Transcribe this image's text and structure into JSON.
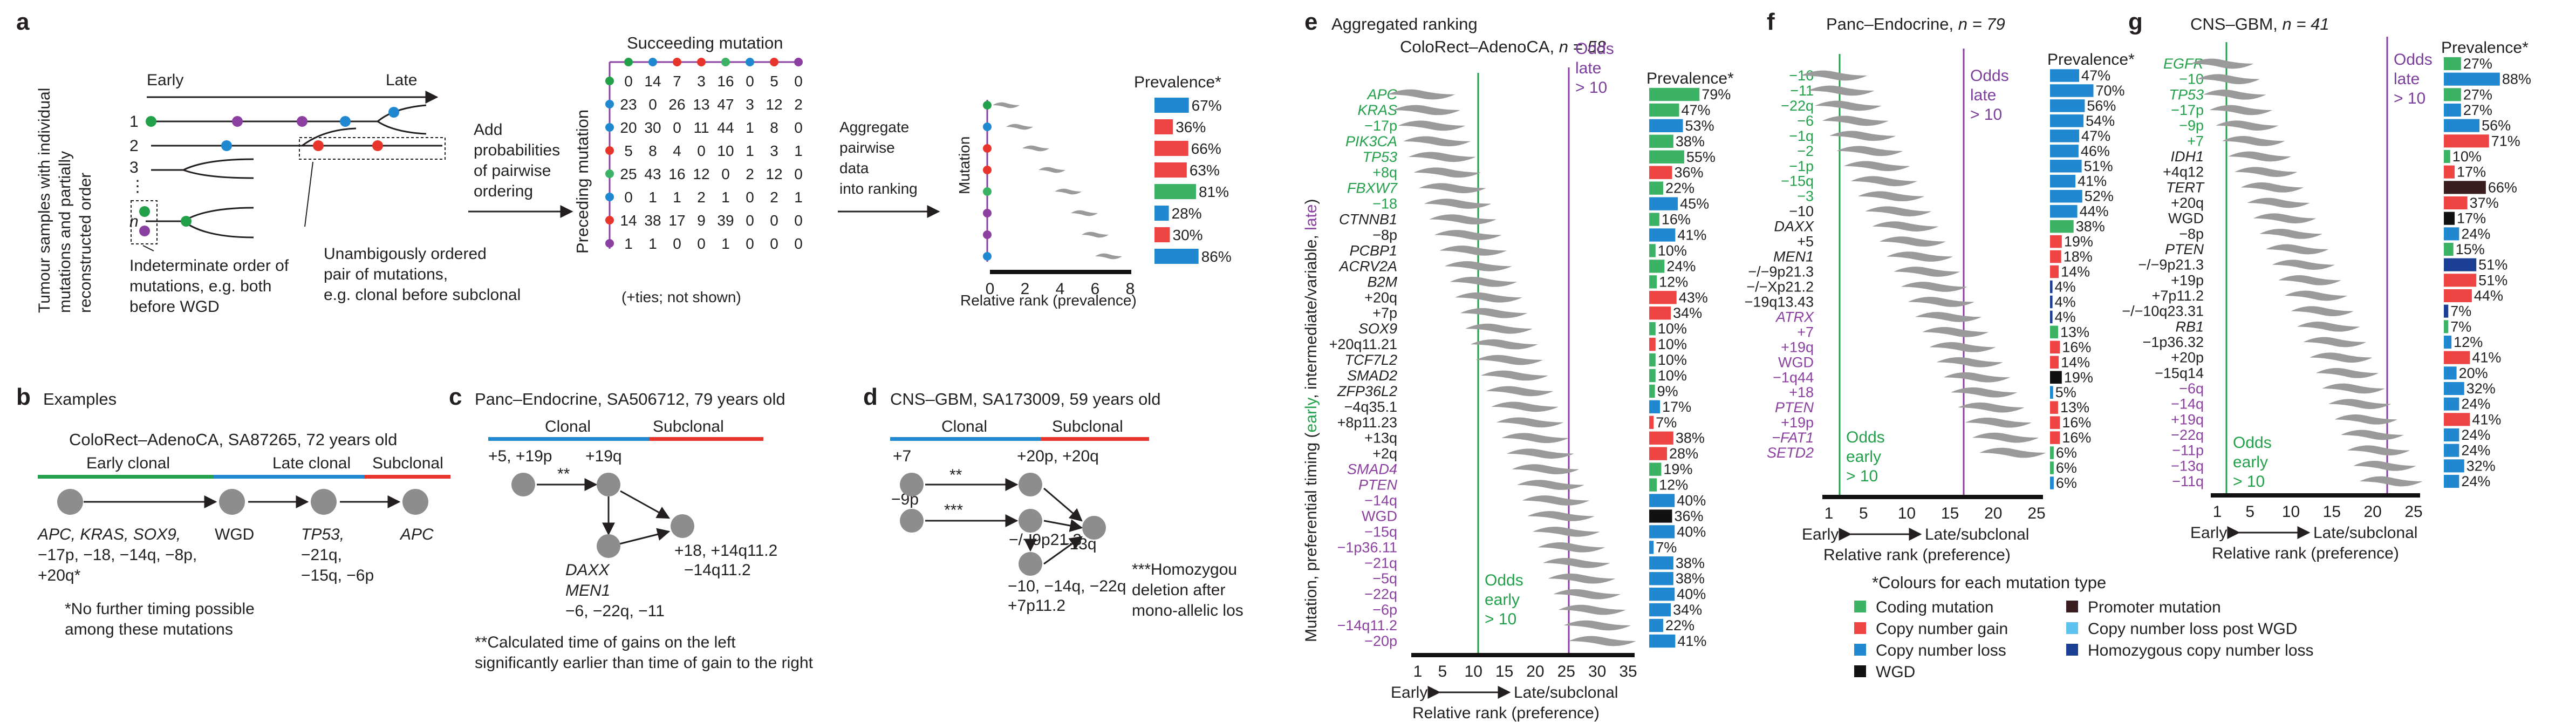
{
  "colors": {
    "early": "#22a04a",
    "late": "#8b3fa0",
    "coding": "#3bb264",
    "gain": "#ef4444",
    "loss": "#1f88d1",
    "loss_post_wgd": "#5ec2ef",
    "promoter": "#3a1d1f",
    "homozygous": "#1a3f94",
    "wgd": "#111111",
    "violin": "#9a9a9a",
    "clonal": "#1f88d1",
    "subclonal": "#e8352b"
  },
  "panel_a": {
    "label": "a",
    "side_text": [
      "Tumour samples with individual",
      "mutations and partially",
      "reconstructed order"
    ],
    "early": "Early",
    "late": "Late",
    "rows": [
      "1",
      "2",
      "3",
      "⋮",
      "n"
    ],
    "indeterminate": [
      "Indeterminate order of",
      "mutations, e.g. both",
      "before WGD"
    ],
    "unambiguous": [
      "Unambigously ordered",
      "pair of mutations,",
      "e.g. clonal before subclonal"
    ],
    "add": [
      "Add",
      "probabilities",
      "of pairwise",
      "ordering"
    ],
    "succeeding": "Succeeding mutation",
    "preceding": "Preceding mutation",
    "matrix": [
      [
        "0",
        "14",
        "7",
        "3",
        "16",
        "0",
        "5",
        "0"
      ],
      [
        "23",
        "0",
        "26",
        "13",
        "47",
        "3",
        "12",
        "2"
      ],
      [
        "20",
        "30",
        "0",
        "11",
        "44",
        "1",
        "8",
        "0"
      ],
      [
        "5",
        "8",
        "4",
        "0",
        "10",
        "1",
        "3",
        "1"
      ],
      [
        "25",
        "43",
        "16",
        "12",
        "0",
        "2",
        "12",
        "0"
      ],
      [
        "0",
        "1",
        "1",
        "2",
        "1",
        "0",
        "2",
        "1"
      ],
      [
        "14",
        "38",
        "17",
        "9",
        "39",
        "0",
        "0",
        "0"
      ],
      [
        "1",
        "1",
        "0",
        "0",
        "1",
        "0",
        "0",
        "0"
      ]
    ],
    "ties": "(+ties; not shown)",
    "aggregate": [
      "Aggregate",
      "pairwise",
      "data",
      "into ranking"
    ],
    "mutation_label": "Mutation",
    "prevalence_title": "Prevalence*",
    "prevalence": [
      {
        "pct": "67%",
        "value": 67,
        "type": "loss"
      },
      {
        "pct": "36%",
        "value": 36,
        "type": "gain"
      },
      {
        "pct": "66%",
        "value": 66,
        "type": "gain"
      },
      {
        "pct": "63%",
        "value": 63,
        "type": "gain"
      },
      {
        "pct": "81%",
        "value": 81,
        "type": "coding"
      },
      {
        "pct": "28%",
        "value": 28,
        "type": "loss"
      },
      {
        "pct": "30%",
        "value": 30,
        "type": "gain"
      },
      {
        "pct": "86%",
        "value": 86,
        "type": "loss"
      }
    ],
    "rank_ticks": [
      "0",
      "2",
      "4",
      "6",
      "8"
    ],
    "rank_axis": "Relative rank (prevalence)"
  },
  "panel_b": {
    "label": "b",
    "title": "Examples",
    "subtitle": "ColoRect–AdenoCA, SA87265, 72 years old",
    "phases": [
      "Early clonal",
      "Late clonal",
      "Subclonal"
    ],
    "nodes": [
      [
        "APC, KRAS, SOX9,",
        "−17p, −18, −14q, −8p,",
        "+20q*"
      ],
      [
        "WGD"
      ],
      [
        "TP53,",
        "−21q,",
        "−15q, −6p"
      ],
      [
        "APC"
      ]
    ],
    "note": [
      "*No further timing possible",
      "among these mutations"
    ]
  },
  "panel_c": {
    "label": "c",
    "title": "Panc–Endocrine, SA506712, 79 years old",
    "clonal": "Clonal",
    "subclonal": "Subclonal",
    "top_left": "+5, +19p",
    "top_right": "+19q",
    "stars": "**",
    "right": [
      "+18, +14q11.2",
      "−14q11.2"
    ],
    "bottom": [
      "DAXX",
      "MEN1",
      "−6, −22q, −11"
    ],
    "note": [
      "**Calculated time of gains on the left",
      "significantly earlier than time of gain to the right"
    ]
  },
  "panel_d": {
    "label": "d",
    "title": "CNS–GBM, SA173009, 59 years old",
    "clonal": "Clonal",
    "subclonal": "Subclonal",
    "n1": "+7",
    "n2": "+20p, +20q",
    "n3": "−9p",
    "n4": "−/−9p21.3",
    "n5": "−13q",
    "n6": [
      "−10, −14q, −22q",
      "+7p11.2"
    ],
    "stars2": "**",
    "stars3": "***",
    "note": [
      "***Homozygou",
      "deletion after",
      "mono-allelic los"
    ]
  },
  "panel_e": {
    "label": "e",
    "title": "Aggregated ranking",
    "subtitle": "ColoRect–AdenoCA,",
    "n": "n = 58",
    "ylabel_prefix": "Mutation, preferential timing (",
    "ylabel_early": "early",
    "ylabel_mid": ", intermediate/variable, ",
    "ylabel_late": "late",
    "ylabel_suffix": ")",
    "odds_late": [
      "Odds",
      "late",
      "> 10"
    ],
    "odds_early": [
      "Odds",
      "early",
      "> 10"
    ],
    "ticks": [
      "1",
      "5",
      "10",
      "15",
      "20",
      "25",
      "30",
      "35"
    ],
    "early": "Early",
    "late": "Late/subclonal",
    "xlabel": "Relative rank (preference)",
    "prevalence_title": "Prevalence*",
    "rows": [
      {
        "label": "APC",
        "c": "g",
        "it": true,
        "pct": "79%",
        "value": 79,
        "type": "coding"
      },
      {
        "label": "KRAS",
        "c": "g",
        "it": true,
        "pct": "47%",
        "value": 47,
        "type": "coding"
      },
      {
        "label": "−17p",
        "c": "g",
        "pct": "53%",
        "value": 53,
        "type": "loss"
      },
      {
        "label": "PIK3CA",
        "c": "g",
        "it": true,
        "pct": "38%",
        "value": 38,
        "type": "coding"
      },
      {
        "label": "TP53",
        "c": "g",
        "it": true,
        "pct": "55%",
        "value": 55,
        "type": "coding"
      },
      {
        "label": "+8q",
        "c": "g",
        "pct": "36%",
        "value": 36,
        "type": "gain"
      },
      {
        "label": "FBXW7",
        "c": "g",
        "it": true,
        "pct": "22%",
        "value": 22,
        "type": "coding"
      },
      {
        "label": "−18",
        "c": "g",
        "pct": "45%",
        "value": 45,
        "type": "loss"
      },
      {
        "label": "CTNNB1",
        "c": "k",
        "it": true,
        "pct": "16%",
        "value": 16,
        "type": "coding"
      },
      {
        "label": "−8p",
        "c": "k",
        "pct": "41%",
        "value": 41,
        "type": "loss"
      },
      {
        "label": "PCBP1",
        "c": "k",
        "it": true,
        "pct": "10%",
        "value": 10,
        "type": "coding"
      },
      {
        "label": "ACRV2A",
        "c": "k",
        "it": true,
        "pct": "24%",
        "value": 24,
        "type": "coding"
      },
      {
        "label": "B2M",
        "c": "k",
        "it": true,
        "pct": "12%",
        "value": 12,
        "type": "coding"
      },
      {
        "label": "+20q",
        "c": "k",
        "pct": "43%",
        "value": 43,
        "type": "gain"
      },
      {
        "label": "+7p",
        "c": "k",
        "pct": "34%",
        "value": 34,
        "type": "gain"
      },
      {
        "label": "SOX9",
        "c": "k",
        "it": true,
        "pct": "10%",
        "value": 10,
        "type": "coding"
      },
      {
        "label": "+20q11.21",
        "c": "k",
        "pct": "10%",
        "value": 10,
        "type": "gain"
      },
      {
        "label": "TCF7L2",
        "c": "k",
        "it": true,
        "pct": "10%",
        "value": 10,
        "type": "coding"
      },
      {
        "label": "SMAD2",
        "c": "k",
        "it": true,
        "pct": "10%",
        "value": 10,
        "type": "coding"
      },
      {
        "label": "ZFP36L2",
        "c": "k",
        "it": true,
        "pct": "9%",
        "value": 9,
        "type": "coding"
      },
      {
        "label": "−4q35.1",
        "c": "k",
        "pct": "17%",
        "value": 17,
        "type": "loss"
      },
      {
        "label": "+8p11.23",
        "c": "k",
        "pct": "7%",
        "value": 7,
        "type": "gain"
      },
      {
        "label": "+13q",
        "c": "k",
        "pct": "38%",
        "value": 38,
        "type": "gain"
      },
      {
        "label": "+2q",
        "c": "k",
        "pct": "28%",
        "value": 28,
        "type": "gain"
      },
      {
        "label": "SMAD4",
        "c": "p",
        "it": true,
        "pct": "19%",
        "value": 19,
        "type": "coding"
      },
      {
        "label": "PTEN",
        "c": "p",
        "it": true,
        "pct": "12%",
        "value": 12,
        "type": "coding"
      },
      {
        "label": "−14q",
        "c": "p",
        "pct": "40%",
        "value": 40,
        "type": "loss"
      },
      {
        "label": "WGD",
        "c": "p",
        "pct": "36%",
        "value": 36,
        "type": "wgd"
      },
      {
        "label": "−15q",
        "c": "p",
        "pct": "40%",
        "value": 40,
        "type": "loss"
      },
      {
        "label": "−1p36.11",
        "c": "p",
        "pct": "7%",
        "value": 7,
        "type": "loss"
      },
      {
        "label": "−21q",
        "c": "p",
        "pct": "38%",
        "value": 38,
        "type": "loss"
      },
      {
        "label": "−5q",
        "c": "p",
        "pct": "38%",
        "value": 38,
        "type": "loss"
      },
      {
        "label": "−22q",
        "c": "p",
        "pct": "40%",
        "value": 40,
        "type": "loss"
      },
      {
        "label": "−6p",
        "c": "p",
        "pct": "34%",
        "value": 34,
        "type": "loss"
      },
      {
        "label": "−14q11.2",
        "c": "p",
        "pct": "22%",
        "value": 22,
        "type": "loss"
      },
      {
        "label": "−20p",
        "c": "p",
        "pct": "41%",
        "value": 41,
        "type": "loss"
      }
    ]
  },
  "panel_f": {
    "label": "f",
    "title": "Panc–Endocrine,",
    "n": "n = 79",
    "odds_late": [
      "Odds",
      "late",
      "> 10"
    ],
    "odds_early": [
      "Odds",
      "early",
      "> 10"
    ],
    "ticks": [
      "1",
      "5",
      "10",
      "15",
      "20",
      "25"
    ],
    "early": "Early",
    "late": "Late/subclonal",
    "xlabel": "Relative rank (preference)",
    "prevalence_title": "Prevalence*",
    "rows": [
      {
        "label": "−16",
        "c": "g",
        "pct": "47%",
        "value": 47,
        "type": "loss"
      },
      {
        "label": "−11",
        "c": "g",
        "pct": "70%",
        "value": 70,
        "type": "loss"
      },
      {
        "label": "−22q",
        "c": "g",
        "pct": "56%",
        "value": 56,
        "type": "loss"
      },
      {
        "label": "−6",
        "c": "g",
        "pct": "54%",
        "value": 54,
        "type": "loss"
      },
      {
        "label": "−1q",
        "c": "g",
        "pct": "47%",
        "value": 47,
        "type": "loss"
      },
      {
        "label": "−2",
        "c": "g",
        "pct": "46%",
        "value": 46,
        "type": "loss"
      },
      {
        "label": "−1p",
        "c": "g",
        "pct": "51%",
        "value": 51,
        "type": "loss"
      },
      {
        "label": "−15q",
        "c": "g",
        "pct": "41%",
        "value": 41,
        "type": "loss"
      },
      {
        "label": "−3",
        "c": "g",
        "pct": "52%",
        "value": 52,
        "type": "loss"
      },
      {
        "label": "−10",
        "c": "k",
        "pct": "44%",
        "value": 44,
        "type": "loss"
      },
      {
        "label": "DAXX",
        "c": "k",
        "it": true,
        "pct": "38%",
        "value": 38,
        "type": "coding"
      },
      {
        "label": "+5",
        "c": "k",
        "pct": "19%",
        "value": 19,
        "type": "gain"
      },
      {
        "label": "MEN1",
        "c": "k",
        "it": true,
        "pct": "18%",
        "value": 18,
        "type": "gain"
      },
      {
        "label": "−/−9p21.3",
        "c": "k",
        "pct": "14%",
        "value": 14,
        "type": "gain"
      },
      {
        "label": "−/−Xp21.2",
        "c": "k",
        "pct": "4%",
        "value": 4,
        "type": "homozygous"
      },
      {
        "label": "−19q13.43",
        "c": "k",
        "pct": "4%",
        "value": 4,
        "type": "homozygous"
      },
      {
        "label": "ATRX",
        "c": "p",
        "it": true,
        "pct": "4%",
        "value": 4,
        "type": "homozygous"
      },
      {
        "label": "+7",
        "c": "p",
        "pct": "13%",
        "value": 13,
        "type": "coding"
      },
      {
        "label": "+19q",
        "c": "p",
        "pct": "16%",
        "value": 16,
        "type": "gain"
      },
      {
        "label": "WGD",
        "c": "p",
        "pct": "14%",
        "value": 14,
        "type": "gain"
      },
      {
        "label": "−1q44",
        "c": "p",
        "pct": "19%",
        "value": 19,
        "type": "wgd"
      },
      {
        "label": "+18",
        "c": "p",
        "pct": "5%",
        "value": 5,
        "type": "loss"
      },
      {
        "label": "PTEN",
        "c": "p",
        "it": true,
        "pct": "13%",
        "value": 13,
        "type": "gain"
      },
      {
        "label": "+19p",
        "c": "p",
        "pct": "16%",
        "value": 16,
        "type": "gain"
      },
      {
        "label": "−FAT1",
        "c": "p",
        "it": true,
        "pct": "16%",
        "value": 16,
        "type": "gain"
      },
      {
        "label": "SETD2",
        "c": "p",
        "it": true,
        "pct": "6%",
        "value": 6,
        "type": "coding"
      }
    ],
    "extra_rows": [
      {
        "pct": "6%",
        "value": 6,
        "type": "coding"
      },
      {
        "pct": "6%",
        "value": 6,
        "type": "loss"
      }
    ]
  },
  "panel_g": {
    "label": "g",
    "title": "CNS–GBM,",
    "n": "n = 41",
    "odds_late": [
      "Odds",
      "late",
      "> 10"
    ],
    "odds_early": [
      "Odds",
      "early",
      "> 10"
    ],
    "ticks": [
      "1",
      "5",
      "10",
      "15",
      "20",
      "25"
    ],
    "early": "Early",
    "late": "Late/subclonal",
    "xlabel": "Relative rank (preference)",
    "prevalence_title": "Prevalence*",
    "rows": [
      {
        "label": "EGFR",
        "c": "g",
        "it": true,
        "pct": "27%",
        "value": 27,
        "type": "coding"
      },
      {
        "label": "−10",
        "c": "g",
        "pct": "88%",
        "value": 88,
        "type": "loss"
      },
      {
        "label": "TP53",
        "c": "g",
        "it": true,
        "pct": "27%",
        "value": 27,
        "type": "coding"
      },
      {
        "label": "−17p",
        "c": "g",
        "pct": "27%",
        "value": 27,
        "type": "loss"
      },
      {
        "label": "−9p",
        "c": "g",
        "pct": "56%",
        "value": 56,
        "type": "loss"
      },
      {
        "label": "+7",
        "c": "g",
        "pct": "71%",
        "value": 71,
        "type": "gain"
      },
      {
        "label": "IDH1",
        "c": "k",
        "it": true,
        "pct": "10%",
        "value": 10,
        "type": "coding"
      },
      {
        "label": "+4q12",
        "c": "k",
        "pct": "17%",
        "value": 17,
        "type": "gain"
      },
      {
        "label": "TERT",
        "c": "k",
        "it": true,
        "pct": "66%",
        "value": 66,
        "type": "promoter"
      },
      {
        "label": "+20q",
        "c": "k",
        "pct": "37%",
        "value": 37,
        "type": "gain"
      },
      {
        "label": "WGD",
        "c": "k",
        "pct": "17%",
        "value": 17,
        "type": "wgd"
      },
      {
        "label": "−8p",
        "c": "k",
        "pct": "24%",
        "value": 24,
        "type": "loss"
      },
      {
        "label": "PTEN",
        "c": "k",
        "it": true,
        "pct": "15%",
        "value": 15,
        "type": "coding"
      },
      {
        "label": "−/−9p21.3",
        "c": "k",
        "pct": "51%",
        "value": 51,
        "type": "homozygous"
      },
      {
        "label": "+19p",
        "c": "k",
        "pct": "51%",
        "value": 51,
        "type": "gain"
      },
      {
        "label": "+7p11.2",
        "c": "k",
        "pct": "44%",
        "value": 44,
        "type": "gain"
      },
      {
        "label": "−/−10q23.31",
        "c": "k",
        "pct": "7%",
        "value": 7,
        "type": "homozygous"
      },
      {
        "label": "RB1",
        "c": "k",
        "it": true,
        "pct": "7%",
        "value": 7,
        "type": "coding"
      },
      {
        "label": "−1p36.32",
        "c": "k",
        "pct": "12%",
        "value": 12,
        "type": "loss"
      },
      {
        "label": "+20p",
        "c": "k",
        "pct": "41%",
        "value": 41,
        "type": "gain"
      },
      {
        "label": "−15q14",
        "c": "k",
        "pct": "20%",
        "value": 20,
        "type": "loss"
      },
      {
        "label": "−6q",
        "c": "p",
        "pct": "32%",
        "value": 32,
        "type": "loss"
      },
      {
        "label": "−14q",
        "c": "p",
        "pct": "24%",
        "value": 24,
        "type": "loss"
      },
      {
        "label": "+19q",
        "c": "p",
        "pct": "41%",
        "value": 41,
        "type": "gain"
      },
      {
        "label": "−22q",
        "c": "p",
        "pct": "24%",
        "value": 24,
        "type": "loss"
      },
      {
        "label": "−11p",
        "c": "p",
        "pct": "24%",
        "value": 24,
        "type": "loss"
      },
      {
        "label": "−13q",
        "c": "p",
        "pct": "32%",
        "value": 32,
        "type": "loss"
      },
      {
        "label": "−11q",
        "c": "p",
        "pct": "24%",
        "value": 24,
        "type": "loss"
      }
    ]
  },
  "legend": {
    "title": "*Colours for each mutation type",
    "items": [
      {
        "label": "Coding mutation",
        "type": "coding"
      },
      {
        "label": "Copy number gain",
        "type": "gain"
      },
      {
        "label": "Copy number loss",
        "type": "loss"
      },
      {
        "label": "WGD",
        "type": "wgd"
      },
      {
        "label": "Promoter mutation",
        "type": "promoter"
      },
      {
        "label": "Copy number loss post WGD",
        "type": "loss_post_wgd"
      },
      {
        "label": "Homozygous copy number loss",
        "type": "homozygous"
      }
    ]
  }
}
